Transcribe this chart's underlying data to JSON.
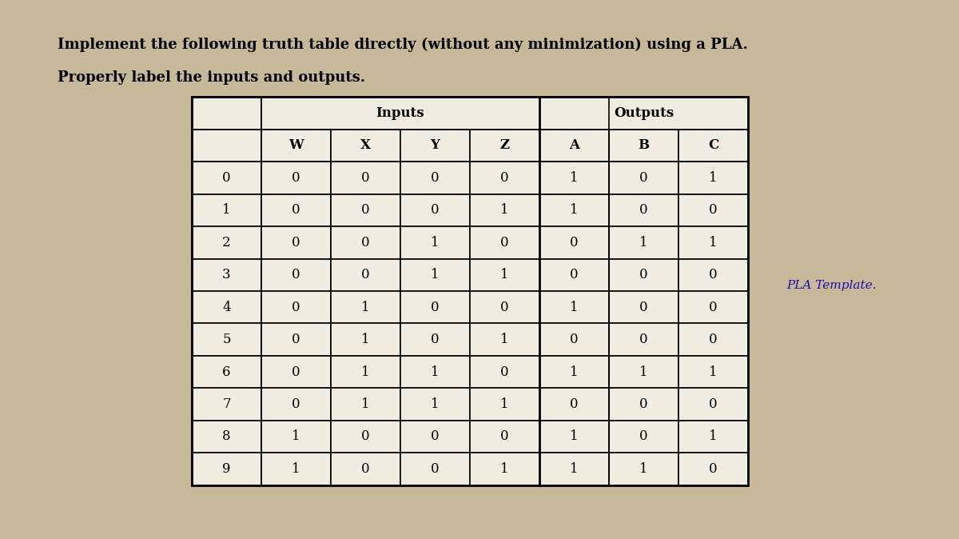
{
  "title_line1": "Implement the following truth table directly (without any minimization) using a PLA.",
  "title_line2": "Properly label the inputs and outputs.",
  "pla_link": "PLA Template.",
  "header_group1": "Inputs",
  "header_group2": "Outputs",
  "col_headers": [
    "W",
    "X",
    "Y",
    "Z",
    "A",
    "B",
    "C"
  ],
  "row_labels": [
    "0",
    "1",
    "2",
    "3",
    "4",
    "5",
    "6",
    "7",
    "8",
    "9"
  ],
  "table_data": [
    [
      0,
      0,
      0,
      0,
      1,
      0,
      1
    ],
    [
      0,
      0,
      0,
      1,
      1,
      0,
      0
    ],
    [
      0,
      0,
      1,
      0,
      0,
      1,
      1
    ],
    [
      0,
      0,
      1,
      1,
      0,
      0,
      0
    ],
    [
      0,
      1,
      0,
      0,
      1,
      0,
      0
    ],
    [
      0,
      1,
      0,
      1,
      0,
      0,
      0
    ],
    [
      0,
      1,
      1,
      0,
      1,
      1,
      1
    ],
    [
      0,
      1,
      1,
      1,
      0,
      0,
      0
    ],
    [
      1,
      0,
      0,
      0,
      1,
      0,
      1
    ],
    [
      1,
      0,
      0,
      1,
      1,
      1,
      0
    ]
  ],
  "bg_color": "#c8b89a",
  "table_bg": "#f0ece0",
  "title_fontsize": 13,
  "cell_fontsize": 12,
  "header_fontsize": 12,
  "pla_fontsize": 11,
  "pla_color": "#1a0dab"
}
